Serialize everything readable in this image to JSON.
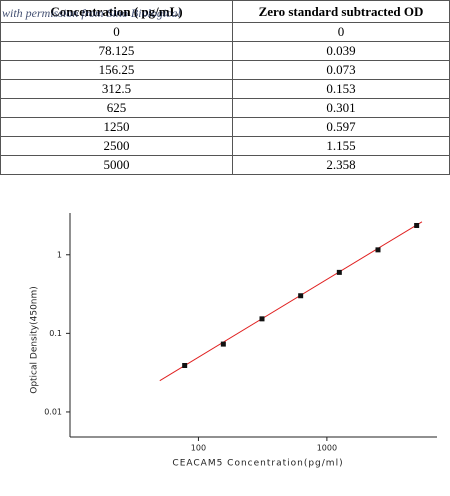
{
  "watermark": "with permission from Sino Biological",
  "table": {
    "header": [
      "Concentration ( pg/mL)",
      "Zero standard subtracted OD"
    ],
    "rows": [
      [
        "0",
        "0"
      ],
      [
        "78.125",
        "0.039"
      ],
      [
        "156.25",
        "0.073"
      ],
      [
        "312.5",
        "0.153"
      ],
      [
        "625",
        "0.301"
      ],
      [
        "1250",
        "0.597"
      ],
      [
        "2500",
        "1.155"
      ],
      [
        "5000",
        "2.358"
      ]
    ]
  },
  "chart_data": {
    "type": "scatter",
    "x_label": "CEACAM5 Concentration(pg/ml)",
    "y_label": "Optical Density(450nm)",
    "x": [
      78.125,
      156.25,
      312.5,
      625,
      1250,
      2500,
      5000
    ],
    "values": [
      0.039,
      0.073,
      0.153,
      0.301,
      0.597,
      1.155,
      2.358
    ],
    "color": "#111111",
    "fit_line": {
      "x": [
        50,
        5500
      ],
      "values": [
        0.025,
        2.63
      ],
      "color": "#e02020"
    },
    "x_log": true,
    "y_log": true,
    "xlim": [
      10,
      7200
    ],
    "ylim": [
      0.0048,
      3.4
    ],
    "xticks": [
      100,
      1000
    ],
    "yticks": [
      0.01,
      0.1,
      1
    ]
  }
}
